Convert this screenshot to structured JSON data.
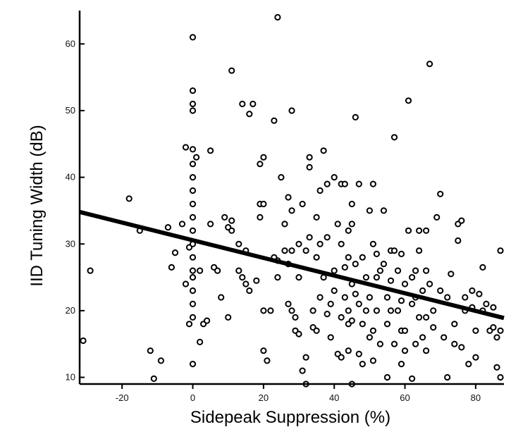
{
  "chart_data": {
    "type": "scatter",
    "title": "",
    "xlabel": "Sidepeak Suppression (%)",
    "ylabel": "IID Tuning Width (dB)",
    "xlim": [
      -32,
      88
    ],
    "ylim": [
      9,
      65
    ],
    "x_ticks": [
      -20,
      0,
      20,
      40,
      60,
      80
    ],
    "y_ticks": [
      10,
      20,
      30,
      40,
      50,
      60
    ],
    "grid": false,
    "legend": "none",
    "marker": "open-circle",
    "colors": {
      "points": "#000000",
      "fit": "#000000",
      "axes": "#000000"
    },
    "fit_line": {
      "x": [
        -32,
        88
      ],
      "y": [
        34.8,
        18.9
      ]
    },
    "points": [
      [
        -31,
        15.5
      ],
      [
        -29,
        26
      ],
      [
        -18,
        36.8
      ],
      [
        -15,
        32
      ],
      [
        -12,
        14
      ],
      [
        -11,
        9.8
      ],
      [
        -9,
        12.5
      ],
      [
        -7,
        32.5
      ],
      [
        -6,
        26.5
      ],
      [
        -5,
        28.7
      ],
      [
        -3,
        33
      ],
      [
        -2,
        44.5
      ],
      [
        -2,
        24
      ],
      [
        -1,
        29.5
      ],
      [
        0,
        44.2
      ],
      [
        0,
        42
      ],
      [
        0,
        40
      ],
      [
        0,
        38
      ],
      [
        0,
        36
      ],
      [
        0,
        34
      ],
      [
        0,
        32
      ],
      [
        0,
        30
      ],
      [
        0,
        28
      ],
      [
        0,
        26
      ],
      [
        0,
        25
      ],
      [
        0,
        23
      ],
      [
        0,
        21
      ],
      [
        0,
        19
      ],
      [
        0,
        12
      ],
      [
        0,
        61
      ],
      [
        0,
        53
      ],
      [
        0,
        51
      ],
      [
        0,
        50
      ],
      [
        -1,
        18
      ],
      [
        1,
        43
      ],
      [
        2,
        26
      ],
      [
        2,
        15.3
      ],
      [
        3,
        18
      ],
      [
        4,
        18.5
      ],
      [
        5,
        44
      ],
      [
        5,
        33
      ],
      [
        6,
        26.5
      ],
      [
        7,
        26
      ],
      [
        8,
        22
      ],
      [
        9,
        34
      ],
      [
        10,
        32.5
      ],
      [
        10,
        19
      ],
      [
        11,
        33.5
      ],
      [
        11,
        32
      ],
      [
        11,
        56
      ],
      [
        13,
        30
      ],
      [
        13,
        26
      ],
      [
        14,
        25
      ],
      [
        14,
        51
      ],
      [
        15,
        29
      ],
      [
        15,
        24
      ],
      [
        16,
        23
      ],
      [
        16,
        49.5
      ],
      [
        17,
        51
      ],
      [
        18,
        24.5
      ],
      [
        19,
        34
      ],
      [
        19,
        42
      ],
      [
        19,
        36
      ],
      [
        20,
        36
      ],
      [
        20,
        43
      ],
      [
        20,
        20
      ],
      [
        20,
        14
      ],
      [
        21,
        12.5
      ],
      [
        22,
        20
      ],
      [
        23,
        48.5
      ],
      [
        23,
        28
      ],
      [
        24,
        25
      ],
      [
        24,
        64
      ],
      [
        25,
        40
      ],
      [
        26,
        33
      ],
      [
        26,
        29
      ],
      [
        27,
        37
      ],
      [
        27,
        27
      ],
      [
        27,
        21
      ],
      [
        28,
        35
      ],
      [
        28,
        29
      ],
      [
        28,
        20
      ],
      [
        28,
        50
      ],
      [
        29,
        19
      ],
      [
        29,
        17
      ],
      [
        30,
        16.5
      ],
      [
        30,
        25
      ],
      [
        30,
        30
      ],
      [
        31,
        36
      ],
      [
        31,
        11
      ],
      [
        32,
        9
      ],
      [
        32,
        13
      ],
      [
        32,
        29
      ],
      [
        33,
        43
      ],
      [
        33,
        41.5
      ],
      [
        33,
        31
      ],
      [
        34,
        20
      ],
      [
        34,
        17.5
      ],
      [
        35,
        34
      ],
      [
        35,
        28
      ],
      [
        35,
        17
      ],
      [
        36,
        38
      ],
      [
        36,
        30
      ],
      [
        36,
        22
      ],
      [
        37,
        44
      ],
      [
        37,
        25
      ],
      [
        38,
        39
      ],
      [
        38,
        19.5
      ],
      [
        39,
        21
      ],
      [
        39,
        16
      ],
      [
        40,
        40
      ],
      [
        40,
        26
      ],
      [
        40,
        23
      ],
      [
        41,
        33
      ],
      [
        41,
        13.5
      ],
      [
        42,
        39
      ],
      [
        42,
        30
      ],
      [
        42,
        19
      ],
      [
        42,
        13
      ],
      [
        43,
        39
      ],
      [
        43,
        26.5
      ],
      [
        43,
        22
      ],
      [
        44,
        32
      ],
      [
        44,
        28
      ],
      [
        44,
        20
      ],
      [
        44,
        18
      ],
      [
        44,
        14
      ],
      [
        45,
        36
      ],
      [
        45,
        33
      ],
      [
        45,
        24
      ],
      [
        45,
        18.5
      ],
      [
        45,
        9
      ],
      [
        46,
        49
      ],
      [
        46,
        27
      ],
      [
        46,
        22.5
      ],
      [
        47,
        39
      ],
      [
        47,
        21
      ],
      [
        47,
        13.5
      ],
      [
        48,
        28
      ],
      [
        48,
        18
      ],
      [
        48,
        12
      ],
      [
        49,
        25
      ],
      [
        49,
        20
      ],
      [
        50,
        35
      ],
      [
        50,
        22
      ],
      [
        50,
        16
      ],
      [
        51,
        39
      ],
      [
        51,
        30
      ],
      [
        51,
        17
      ],
      [
        51,
        12.5
      ],
      [
        52,
        25
      ],
      [
        52,
        20
      ],
      [
        53,
        26
      ],
      [
        53,
        15
      ],
      [
        54,
        35
      ],
      [
        54,
        27
      ],
      [
        55,
        22
      ],
      [
        55,
        18
      ],
      [
        55,
        10
      ],
      [
        56,
        29
      ],
      [
        56,
        24.5
      ],
      [
        56,
        20
      ],
      [
        57,
        46
      ],
      [
        57,
        29
      ],
      [
        57,
        15
      ],
      [
        58,
        26
      ],
      [
        58,
        20
      ],
      [
        59,
        28.5
      ],
      [
        59,
        21.5
      ],
      [
        59,
        17
      ],
      [
        59,
        12
      ],
      [
        60,
        24
      ],
      [
        60,
        17
      ],
      [
        60,
        14
      ],
      [
        61,
        51.5
      ],
      [
        61,
        32
      ],
      [
        62,
        25
      ],
      [
        62,
        21
      ],
      [
        62,
        9.8
      ],
      [
        63,
        26
      ],
      [
        63,
        22
      ],
      [
        63,
        15
      ],
      [
        64,
        32
      ],
      [
        64,
        29
      ],
      [
        64,
        19
      ],
      [
        65,
        23
      ],
      [
        65,
        16
      ],
      [
        66,
        32
      ],
      [
        66,
        26
      ],
      [
        66,
        19
      ],
      [
        66,
        14
      ],
      [
        67,
        57
      ],
      [
        67,
        24
      ],
      [
        68,
        20
      ],
      [
        68,
        17.5
      ],
      [
        69,
        34
      ],
      [
        70,
        37.5
      ],
      [
        70,
        23
      ],
      [
        71,
        16
      ],
      [
        72,
        22
      ],
      [
        72,
        10
      ],
      [
        73,
        25.5
      ],
      [
        74,
        18
      ],
      [
        74,
        15
      ],
      [
        75,
        33
      ],
      [
        75,
        30.5
      ],
      [
        76,
        33.5
      ],
      [
        76,
        14.5
      ],
      [
        77,
        20
      ],
      [
        78,
        12
      ],
      [
        79,
        23
      ],
      [
        80,
        17
      ],
      [
        80,
        13
      ],
      [
        81,
        22.5
      ],
      [
        82,
        26.5
      ],
      [
        83,
        21
      ],
      [
        84,
        17
      ],
      [
        85,
        20.5
      ],
      [
        86,
        16
      ],
      [
        86,
        11.5
      ],
      [
        87,
        17
      ],
      [
        87,
        10
      ],
      [
        87,
        29
      ],
      [
        85,
        17.5
      ],
      [
        82,
        20
      ],
      [
        79,
        20.5
      ],
      [
        77,
        22
      ],
      [
        52,
        28.5
      ],
      [
        38,
        31
      ],
      [
        24,
        27.5
      ]
    ]
  }
}
